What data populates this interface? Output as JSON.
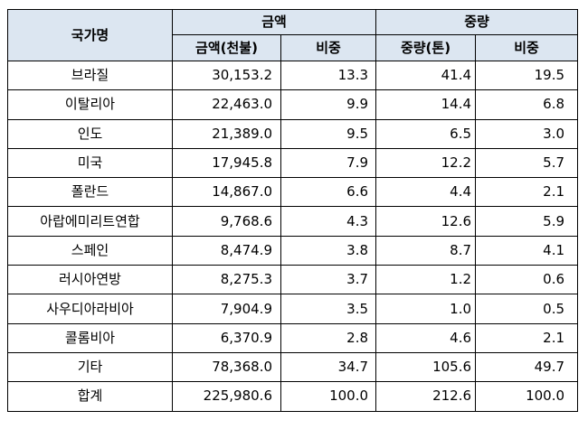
{
  "header": {
    "country": "국가명",
    "amount_group": "금액",
    "weight_group": "중량",
    "amount": "금액(천불)",
    "amount_share": "비중",
    "weight": "중량(톤)",
    "weight_share": "비중"
  },
  "rows": [
    {
      "country": "브라질",
      "amount": "30,153.2",
      "amount_share": "13.3",
      "weight": "41.4",
      "weight_share": "19.5"
    },
    {
      "country": "이탈리아",
      "amount": "22,463.0",
      "amount_share": "9.9",
      "weight": "14.4",
      "weight_share": "6.8"
    },
    {
      "country": "인도",
      "amount": "21,389.0",
      "amount_share": "9.5",
      "weight": "6.5",
      "weight_share": "3.0"
    },
    {
      "country": "미국",
      "amount": "17,945.8",
      "amount_share": "7.9",
      "weight": "12.2",
      "weight_share": "5.7"
    },
    {
      "country": "폴란드",
      "amount": "14,867.0",
      "amount_share": "6.6",
      "weight": "4.4",
      "weight_share": "2.1"
    },
    {
      "country": "아랍에미리트연합",
      "amount": "9,768.6",
      "amount_share": "4.3",
      "weight": "12.6",
      "weight_share": "5.9"
    },
    {
      "country": "스페인",
      "amount": "8,474.9",
      "amount_share": "3.8",
      "weight": "8.7",
      "weight_share": "4.1"
    },
    {
      "country": "러시아연방",
      "amount": "8,275.3",
      "amount_share": "3.7",
      "weight": "1.2",
      "weight_share": "0.6"
    },
    {
      "country": "사우디아라비아",
      "amount": "7,904.9",
      "amount_share": "3.5",
      "weight": "1.0",
      "weight_share": "0.5"
    },
    {
      "country": "콜롬비아",
      "amount": "6,370.9",
      "amount_share": "2.8",
      "weight": "4.6",
      "weight_share": "2.1"
    },
    {
      "country": "기타",
      "amount": "78,368.0",
      "amount_share": "34.7",
      "weight": "105.6",
      "weight_share": "49.7"
    },
    {
      "country": "합계",
      "amount": "225,980.6",
      "amount_share": "100.0",
      "weight": "212.6",
      "weight_share": "100.0"
    }
  ]
}
